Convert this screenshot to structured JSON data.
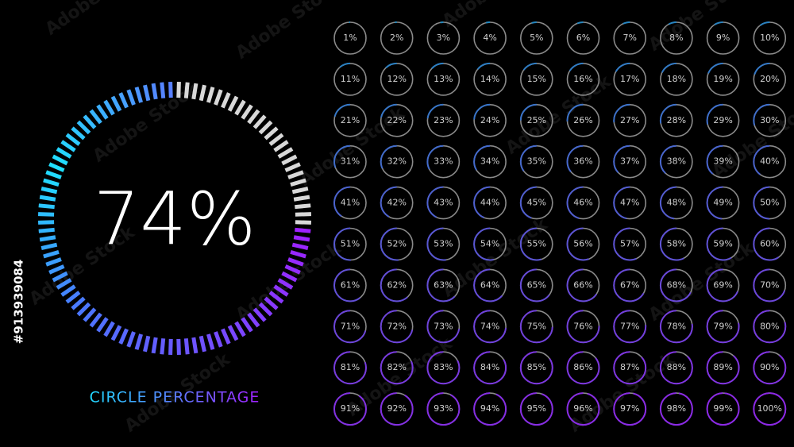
{
  "main": {
    "value": 74,
    "label": "74%"
  },
  "caption": "CIRCLE PERCENTAGE",
  "watermark": "Adobe Stock",
  "stock_id": "#913939084",
  "grid": {
    "items": [
      {
        "value": 1,
        "label": "1%"
      },
      {
        "value": 2,
        "label": "2%"
      },
      {
        "value": 3,
        "label": "3%"
      },
      {
        "value": 4,
        "label": "4%"
      },
      {
        "value": 5,
        "label": "5%"
      },
      {
        "value": 6,
        "label": "6%"
      },
      {
        "value": 7,
        "label": "7%"
      },
      {
        "value": 8,
        "label": "8%"
      },
      {
        "value": 9,
        "label": "9%"
      },
      {
        "value": 10,
        "label": "10%"
      },
      {
        "value": 11,
        "label": "11%"
      },
      {
        "value": 12,
        "label": "12%"
      },
      {
        "value": 13,
        "label": "13%"
      },
      {
        "value": 14,
        "label": "14%"
      },
      {
        "value": 15,
        "label": "15%"
      },
      {
        "value": 16,
        "label": "16%"
      },
      {
        "value": 17,
        "label": "17%"
      },
      {
        "value": 18,
        "label": "18%"
      },
      {
        "value": 19,
        "label": "19%"
      },
      {
        "value": 20,
        "label": "20%"
      },
      {
        "value": 21,
        "label": "21%"
      },
      {
        "value": 22,
        "label": "22%"
      },
      {
        "value": 23,
        "label": "23%"
      },
      {
        "value": 24,
        "label": "24%"
      },
      {
        "value": 25,
        "label": "25%"
      },
      {
        "value": 26,
        "label": "26%"
      },
      {
        "value": 27,
        "label": "27%"
      },
      {
        "value": 28,
        "label": "28%"
      },
      {
        "value": 29,
        "label": "29%"
      },
      {
        "value": 30,
        "label": "30%"
      },
      {
        "value": 31,
        "label": "31%"
      },
      {
        "value": 32,
        "label": "32%"
      },
      {
        "value": 33,
        "label": "33%"
      },
      {
        "value": 34,
        "label": "34%"
      },
      {
        "value": 35,
        "label": "35%"
      },
      {
        "value": 36,
        "label": "36%"
      },
      {
        "value": 37,
        "label": "37%"
      },
      {
        "value": 38,
        "label": "38%"
      },
      {
        "value": 39,
        "label": "39%"
      },
      {
        "value": 40,
        "label": "40%"
      },
      {
        "value": 41,
        "label": "41%"
      },
      {
        "value": 42,
        "label": "42%"
      },
      {
        "value": 43,
        "label": "43%"
      },
      {
        "value": 44,
        "label": "44%"
      },
      {
        "value": 45,
        "label": "45%"
      },
      {
        "value": 46,
        "label": "46%"
      },
      {
        "value": 47,
        "label": "47%"
      },
      {
        "value": 48,
        "label": "48%"
      },
      {
        "value": 49,
        "label": "49%"
      },
      {
        "value": 50,
        "label": "50%"
      },
      {
        "value": 51,
        "label": "51%"
      },
      {
        "value": 52,
        "label": "52%"
      },
      {
        "value": 53,
        "label": "53%"
      },
      {
        "value": 54,
        "label": "54%"
      },
      {
        "value": 55,
        "label": "55%"
      },
      {
        "value": 56,
        "label": "56%"
      },
      {
        "value": 57,
        "label": "57%"
      },
      {
        "value": 58,
        "label": "58%"
      },
      {
        "value": 59,
        "label": "59%"
      },
      {
        "value": 60,
        "label": "60%"
      },
      {
        "value": 61,
        "label": "61%"
      },
      {
        "value": 62,
        "label": "62%"
      },
      {
        "value": 63,
        "label": "63%"
      },
      {
        "value": 64,
        "label": "64%"
      },
      {
        "value": 65,
        "label": "65%"
      },
      {
        "value": 66,
        "label": "66%"
      },
      {
        "value": 67,
        "label": "67%"
      },
      {
        "value": 68,
        "label": "68%"
      },
      {
        "value": 69,
        "label": "69%"
      },
      {
        "value": 70,
        "label": "70%"
      },
      {
        "value": 71,
        "label": "71%"
      },
      {
        "value": 72,
        "label": "72%"
      },
      {
        "value": 73,
        "label": "73%"
      },
      {
        "value": 74,
        "label": "74%"
      },
      {
        "value": 75,
        "label": "75%"
      },
      {
        "value": 76,
        "label": "76%"
      },
      {
        "value": 77,
        "label": "77%"
      },
      {
        "value": 78,
        "label": "78%"
      },
      {
        "value": 79,
        "label": "79%"
      },
      {
        "value": 80,
        "label": "80%"
      },
      {
        "value": 81,
        "label": "81%"
      },
      {
        "value": 82,
        "label": "82%"
      },
      {
        "value": 83,
        "label": "83%"
      },
      {
        "value": 84,
        "label": "84%"
      },
      {
        "value": 85,
        "label": "85%"
      },
      {
        "value": 86,
        "label": "86%"
      },
      {
        "value": 87,
        "label": "87%"
      },
      {
        "value": 88,
        "label": "88%"
      },
      {
        "value": 89,
        "label": "89%"
      },
      {
        "value": 90,
        "label": "90%"
      },
      {
        "value": 91,
        "label": "91%"
      },
      {
        "value": 92,
        "label": "92%"
      },
      {
        "value": 93,
        "label": "93%"
      },
      {
        "value": 94,
        "label": "94%"
      },
      {
        "value": 95,
        "label": "95%"
      },
      {
        "value": 96,
        "label": "96%"
      },
      {
        "value": 97,
        "label": "97%"
      },
      {
        "value": 98,
        "label": "98%"
      },
      {
        "value": 99,
        "label": "99%"
      },
      {
        "value": 100,
        "label": "100%"
      }
    ]
  }
}
